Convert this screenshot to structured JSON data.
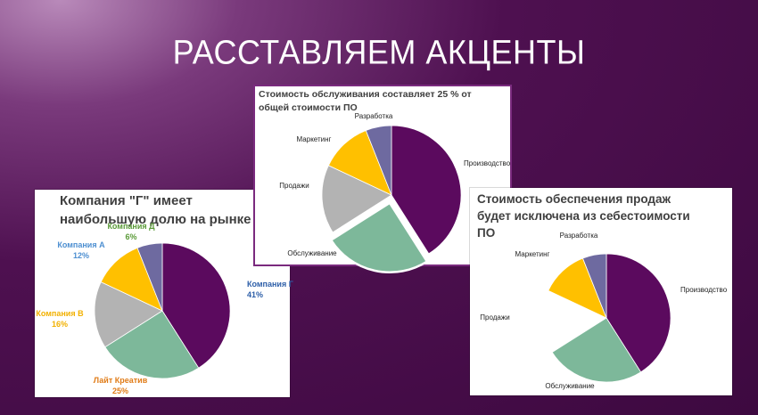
{
  "slide": {
    "title": "РАССТАВЛЯЕМ АКЦЕНТЫ"
  },
  "chart_data": [
    {
      "type": "pie",
      "title": "Компания \"Г\" имеет наибольшую долю на рынке",
      "categories": [
        "Компания Г",
        "Лайт Креатив",
        "Компания В",
        "Компания А",
        "Компания Д"
      ],
      "values": [
        41,
        25,
        16,
        12,
        6
      ],
      "percent_labels": [
        "41%",
        "25%",
        "16%",
        "12%",
        "6%"
      ],
      "colors": [
        "#5b0a5e",
        "#7db89a",
        "#b3b3b3",
        "#ffc000",
        "#6e6aa0"
      ],
      "label_colors": [
        "#2e5fa8",
        "#e07b16",
        "#f2b100",
        "#4d8fd1",
        "#5a9a38"
      ]
    },
    {
      "type": "pie",
      "title": "Стоимость обслуживания составляет 25 % от общей стоимости ПО",
      "categories": [
        "Производство",
        "Обслуживание",
        "Продажи",
        "Маркетинг",
        "Разработка"
      ],
      "values": [
        41,
        25,
        16,
        12,
        6
      ],
      "exploded": "Обслуживание",
      "colors": [
        "#5b0a5e",
        "#7db89a",
        "#b3b3b3",
        "#ffc000",
        "#6e6aa0"
      ]
    },
    {
      "type": "pie",
      "title": "Стоимость обеспечения продаж будет исключена из себестоимости ПО",
      "categories": [
        "Производство",
        "Обслуживание",
        "Продажи",
        "Маркетинг",
        "Разработка"
      ],
      "values": [
        41,
        25,
        16,
        12,
        6
      ],
      "hidden": "Продажи",
      "colors": [
        "#5b0a5e",
        "#7db89a",
        "#b3b3b3",
        "#ffc000",
        "#6e6aa0"
      ]
    }
  ]
}
